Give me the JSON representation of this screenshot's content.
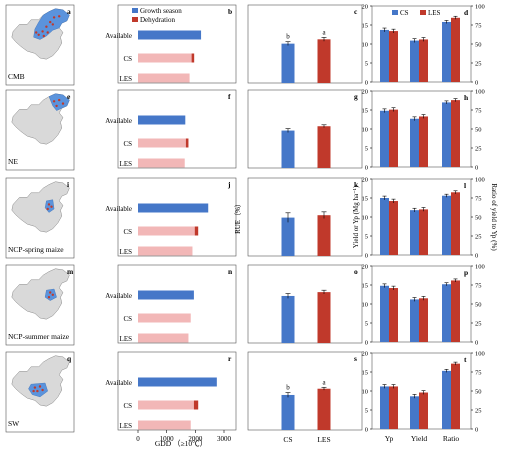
{
  "colors": {
    "growth": "#4577c8",
    "dehydration": "#c0392b",
    "cs_stack": "#f2b7b7",
    "les_stack": "#f2b7b7",
    "ruecs": "#4577c8",
    "rueles": "#c0392b",
    "map_highlight": "#5b93dc",
    "map_land": "#d9d9d9"
  },
  "regions": [
    {
      "map_letter": "a",
      "name": "CMB",
      "panels": [
        "b",
        "c",
        "d"
      ]
    },
    {
      "map_letter": "e",
      "name": "NE",
      "panels": [
        "f",
        "g",
        "h"
      ]
    },
    {
      "map_letter": "i",
      "name": "NCP-spring maize",
      "panels": [
        "j",
        "k",
        "l"
      ]
    },
    {
      "map_letter": "m",
      "name": "NCP-summer maize",
      "panels": [
        "n",
        "o",
        "p"
      ]
    },
    {
      "map_letter": "q",
      "name": "SW",
      "panels": [
        "r",
        "s",
        "t"
      ]
    }
  ],
  "chart_data": [
    {
      "type": "bar",
      "orientation": "horizontal",
      "stacked": true,
      "categories": [
        "Available",
        "CS",
        "LES"
      ],
      "series": [
        {
          "name": "Growth season",
          "rows": [
            [
              2200,
              1870,
              1800
            ],
            [
              1650,
              1670,
              1630
            ],
            [
              2450,
              1980,
              1900
            ],
            [
              1950,
              1840,
              1760
            ],
            [
              2750,
              1950,
              1840
            ]
          ]
        },
        {
          "name": "Dehydration",
          "rows": [
            [
              0,
              90,
              0
            ],
            [
              0,
              90,
              0
            ],
            [
              0,
              120,
              0
            ],
            [
              0,
              0,
              0
            ],
            [
              0,
              150,
              0
            ]
          ]
        }
      ],
      "xlim": [
        0,
        3000
      ],
      "xticks": [
        "0",
        "1000",
        "2000",
        "3000"
      ],
      "xlabel": "GDD （≥10℃）",
      "legend": [
        "Growth season",
        "Dehydration"
      ]
    },
    {
      "type": "bar",
      "categories": [
        "CS",
        "LES"
      ],
      "values": [
        [
          0.82,
          0.91
        ],
        [
          0.78,
          0.87
        ],
        [
          0.8,
          0.85
        ],
        [
          0.98,
          1.06
        ],
        [
          0.73,
          0.86
        ]
      ],
      "errors": [
        [
          0.04,
          0.04
        ],
        [
          0.04,
          0.03
        ],
        [
          0.1,
          0.07
        ],
        [
          0.05,
          0.04
        ],
        [
          0.05,
          0.03
        ]
      ],
      "letters": [
        [
          "b",
          "a"
        ],
        null,
        null,
        null,
        [
          "b",
          "a"
        ]
      ],
      "ylim": [
        0,
        1.5
      ],
      "ylabel": "RUE（%）"
    },
    {
      "type": "bar",
      "categories": [
        "Yp",
        "Yield",
        "Ratio"
      ],
      "series": [
        {
          "name": "CS",
          "values": [
            [
              13.7,
              10.9,
              15.8
            ],
            [
              14.8,
              12.7,
              17.0
            ],
            [
              15.0,
              11.8,
              15.6
            ],
            [
              14.8,
              11.2,
              15.2
            ],
            [
              11.2,
              8.6,
              15.3
            ]
          ]
        },
        {
          "name": "LES",
          "values": [
            [
              13.4,
              11.2,
              16.9
            ],
            [
              15.1,
              13.3,
              17.6
            ],
            [
              14.2,
              12.0,
              16.5
            ],
            [
              14.2,
              11.5,
              16.2
            ],
            [
              11.2,
              9.6,
              17.2
            ]
          ]
        }
      ],
      "errors": [
        0.5,
        0.5,
        0.4
      ],
      "ylim_left": [
        0,
        20
      ],
      "yticks_left": [
        "0",
        "5",
        "10",
        "15",
        "20"
      ],
      "ylim_right": [
        0,
        100
      ],
      "yticks_right": [
        "0",
        "25",
        "50",
        "75",
        "100"
      ],
      "ylabel_left": "Yield or Yp (Mg ha⁻¹)",
      "ylabel_right": "Ratio of yield to Yp (%)",
      "legend": [
        "CS",
        "LES"
      ]
    }
  ]
}
